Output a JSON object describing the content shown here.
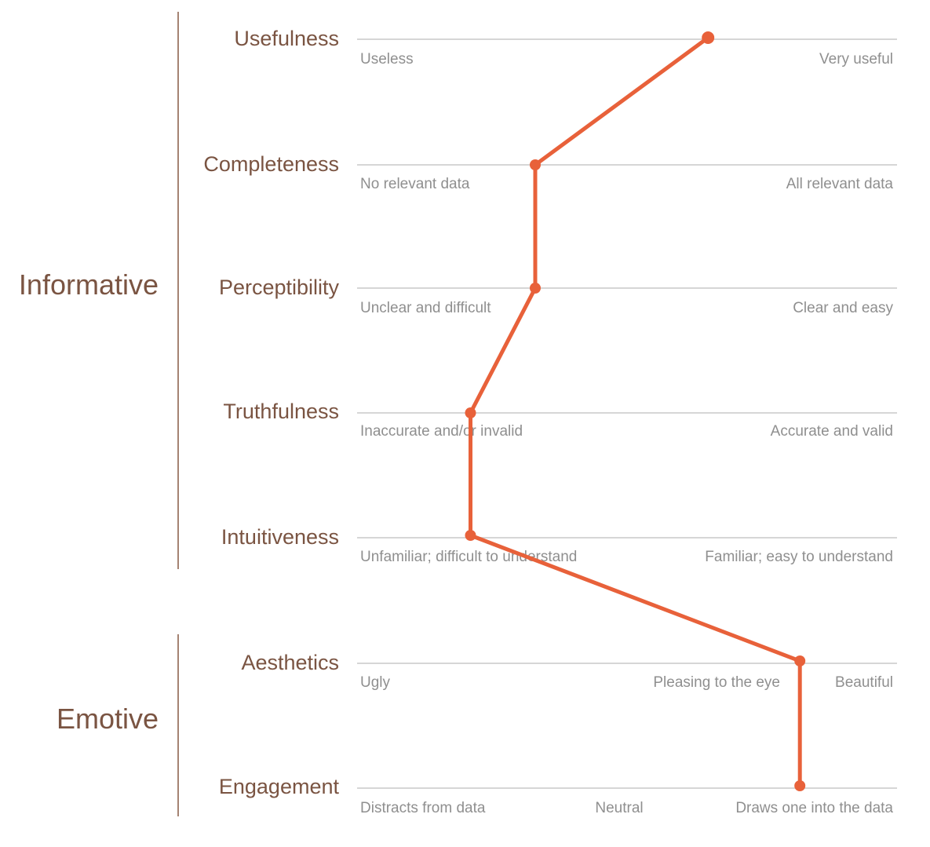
{
  "colors": {
    "group_text": "#7a5442",
    "pole_text": "#8f8f8f",
    "scale_line": "#d6d6d6",
    "bracket": "#a58372",
    "profile": "#e8613a"
  },
  "groups": [
    {
      "label": "Informative"
    },
    {
      "label": "Emotive"
    }
  ],
  "dimensions": [
    {
      "label": "Usefulness",
      "left_pole": "Useless",
      "mid_pole": "",
      "right_pole": "Very useful",
      "rating": 0.65
    },
    {
      "label": "Completeness",
      "left_pole": "No relevant data",
      "mid_pole": "",
      "right_pole": "All relevant data",
      "rating": 0.33
    },
    {
      "label": "Perceptibility",
      "left_pole": "Unclear and difficult",
      "mid_pole": "",
      "right_pole": "Clear and easy",
      "rating": 0.33
    },
    {
      "label": "Truthfulness",
      "left_pole": "Inaccurate and/or invalid",
      "mid_pole": "",
      "right_pole": "Accurate and valid",
      "rating": 0.21
    },
    {
      "label": "Intuitiveness",
      "left_pole": "Unfamiliar; difficult to understand",
      "mid_pole": "",
      "right_pole": "Familiar; easy to understand",
      "rating": 0.21
    },
    {
      "label": "Aesthetics",
      "left_pole": "Ugly",
      "mid_pole": "Pleasing to the eye",
      "right_pole": "Beautiful",
      "rating": 0.82
    },
    {
      "label": "Engagement",
      "left_pole": "Distracts from data",
      "mid_pole": "Neutral",
      "right_pole": "Draws one into the data",
      "rating": 0.82
    }
  ]
}
